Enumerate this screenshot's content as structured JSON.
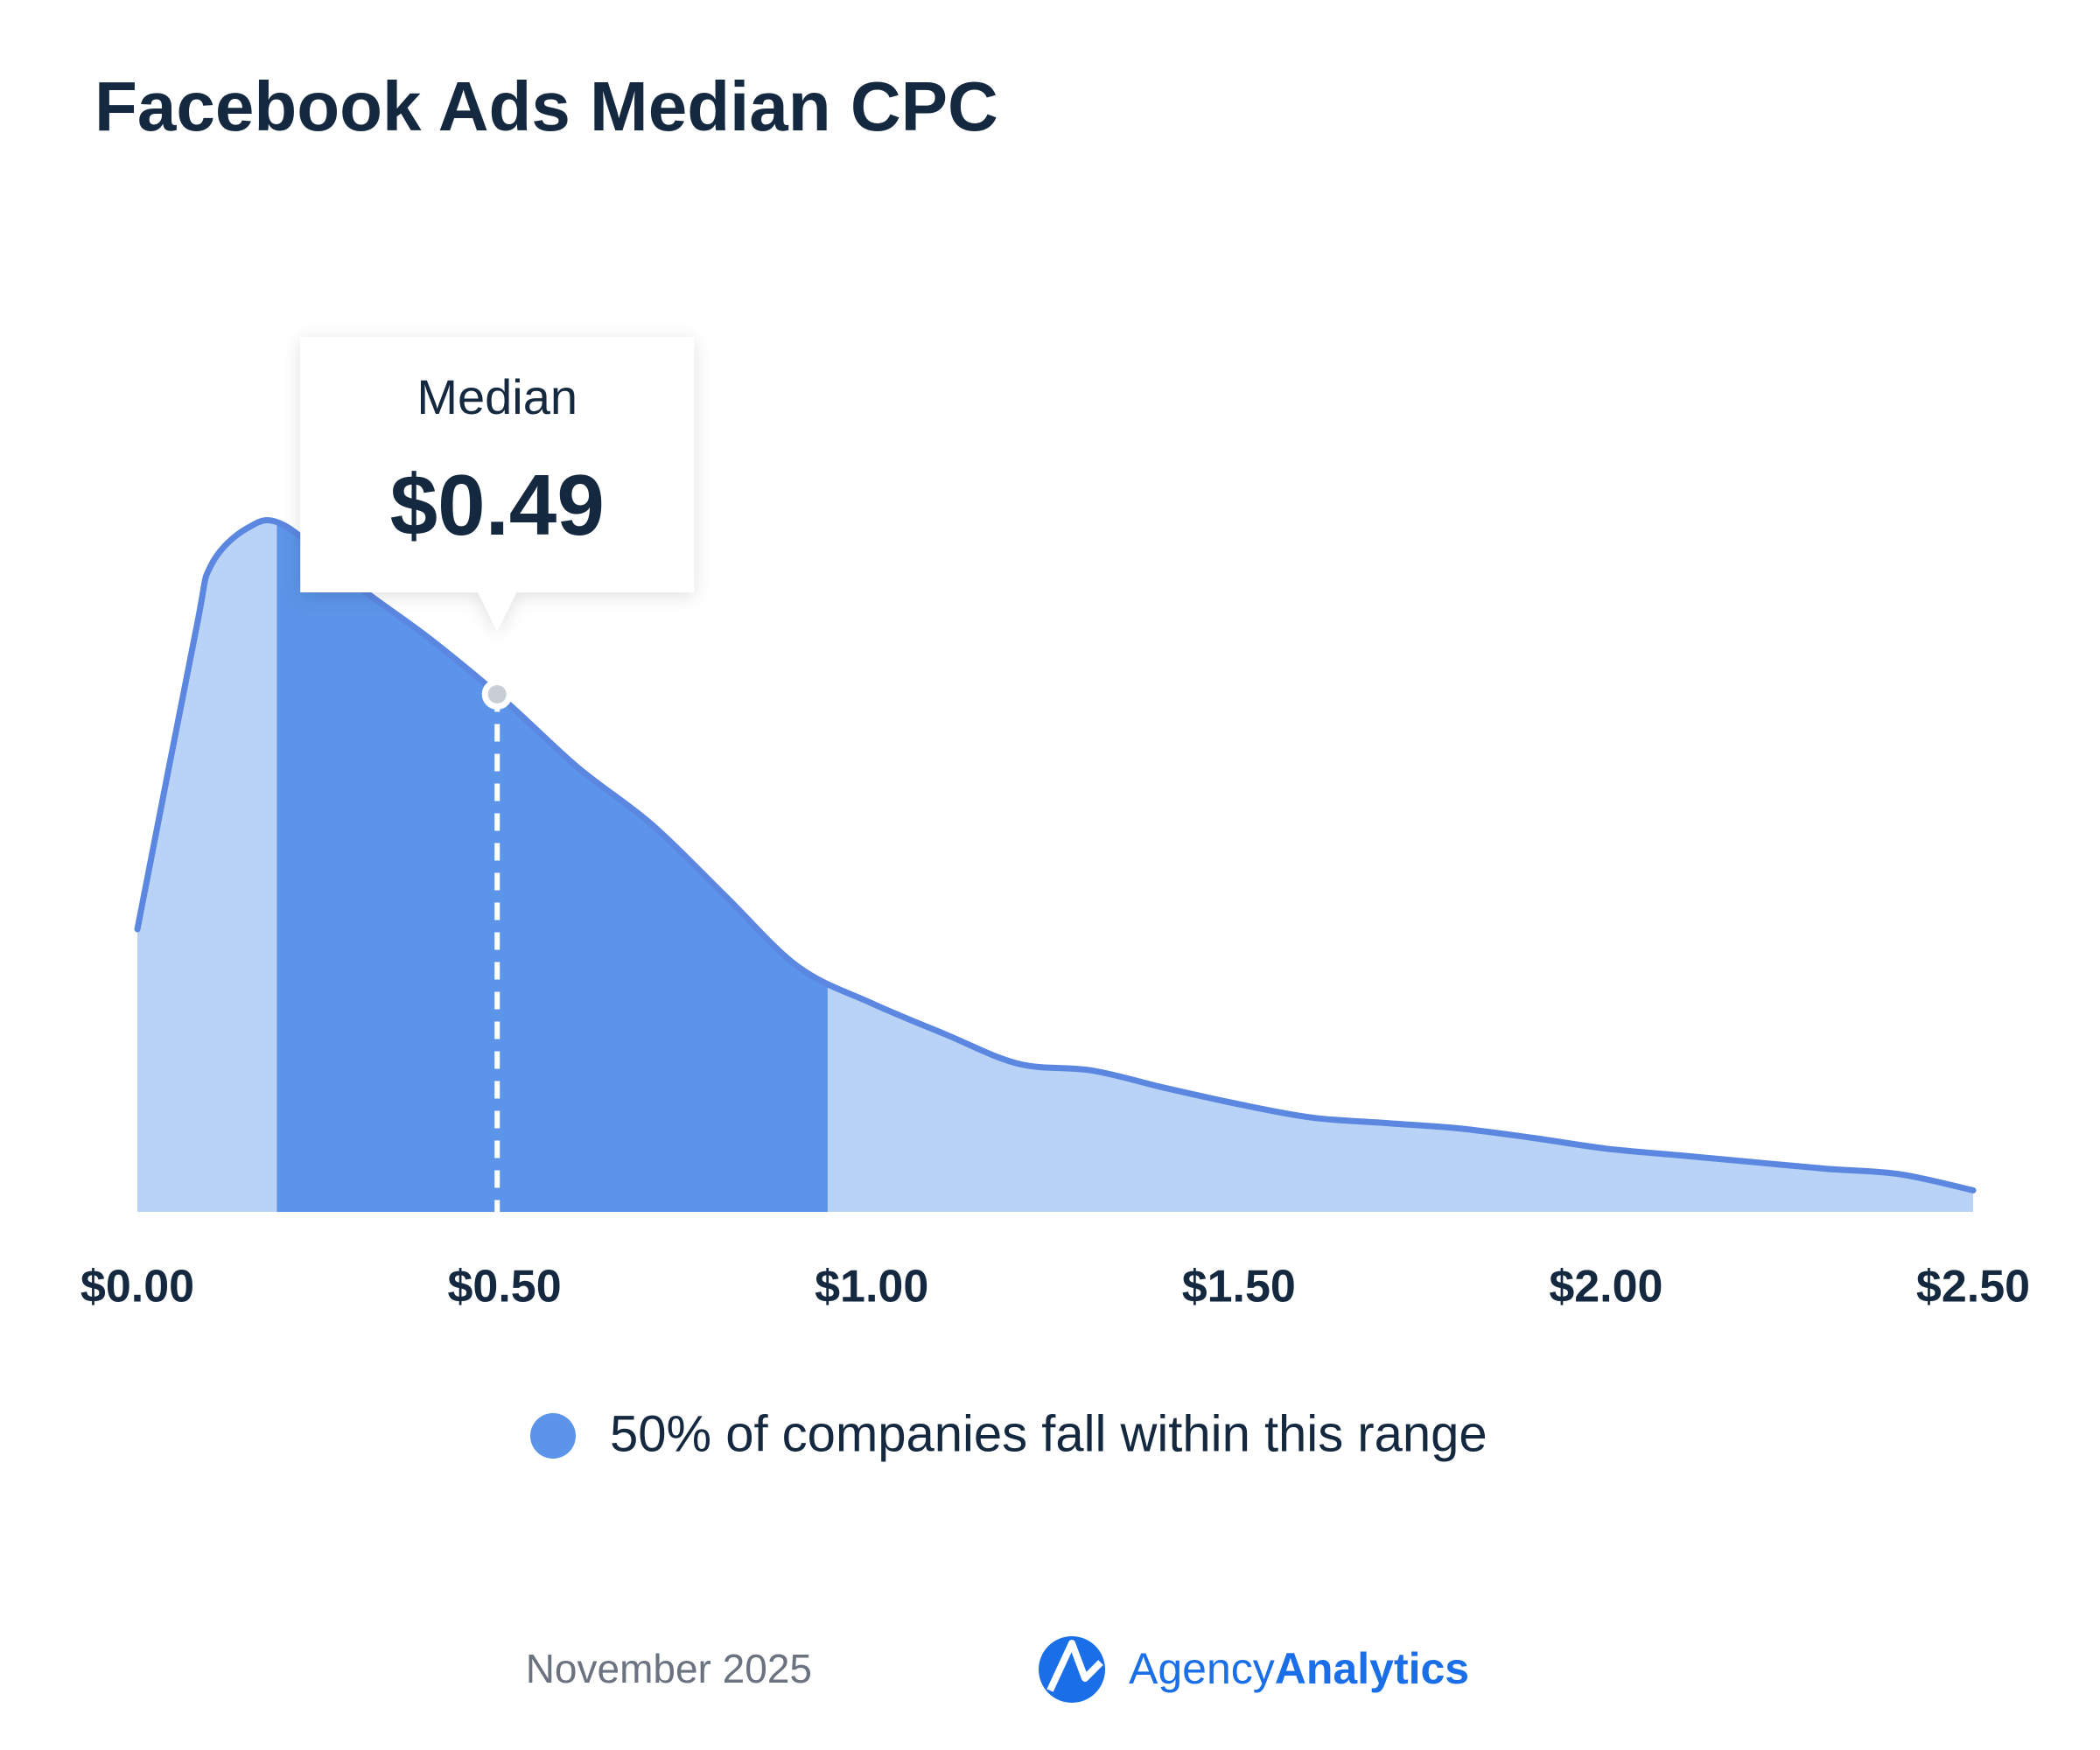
{
  "chart_data": {
    "type": "area",
    "title": "Facebook Ads Median CPC",
    "x": [
      0,
      0.079,
      0.1,
      0.15,
      0.2,
      0.3,
      0.4,
      0.5,
      0.6,
      0.7,
      0.8,
      0.9,
      1.0,
      1.1,
      1.2,
      1.3,
      1.4,
      1.5,
      1.6,
      1.7,
      1.8,
      1.9,
      2.0,
      2.1,
      2.2,
      2.3,
      2.4,
      2.5
    ],
    "values": [
      210,
      430,
      480,
      508,
      510,
      465,
      425,
      380,
      330,
      288,
      235,
      182,
      155,
      132,
      110,
      105,
      92,
      80,
      70,
      66,
      62,
      55,
      47,
      42,
      37,
      32,
      28,
      16
    ],
    "color": "#5b87e0",
    "fill_color": "#b9d3f6",
    "xlim": [
      0,
      2.5
    ],
    "ylim": [
      0,
      520
    ],
    "xticks": [
      {
        "value": 0,
        "label": "$0.00"
      },
      {
        "value": 0.5,
        "label": "$0.50"
      },
      {
        "value": 1,
        "label": "$1.00"
      },
      {
        "value": 1.5,
        "label": "$1.50"
      },
      {
        "value": 2,
        "label": "$2.00"
      },
      {
        "value": 2.5,
        "label": "$2.50"
      }
    ],
    "highlight": {
      "range": [
        0.19,
        0.94
      ],
      "color": "#5b94e8",
      "label": "50% of companies fall within this range"
    },
    "median": {
      "value": 0.49,
      "title": "Median",
      "label": "$0.49"
    }
  },
  "footer": {
    "date": "November 2025",
    "brand_light": "Agency",
    "brand_bold": "Analytics"
  }
}
